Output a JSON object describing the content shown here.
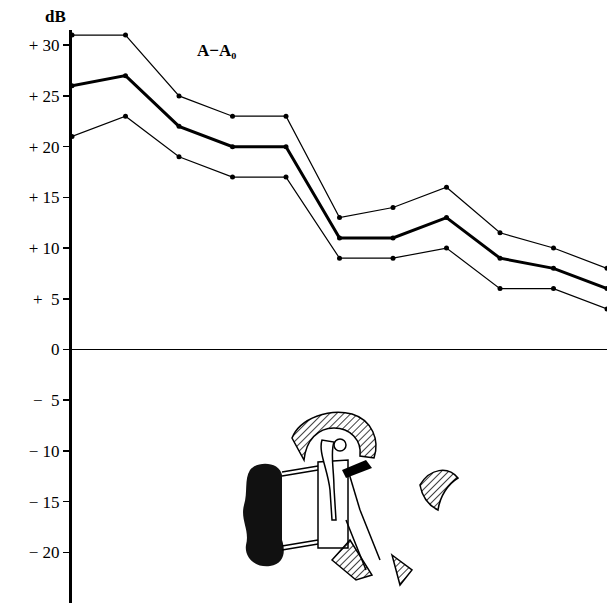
{
  "chart_data": {
    "type": "line",
    "ylabel": "dB",
    "annotations": [
      {
        "text": "A−A₀"
      }
    ],
    "x": [
      0,
      1,
      2,
      3,
      4,
      5,
      6,
      7,
      8,
      9,
      10
    ],
    "xlim": [
      0,
      10
    ],
    "ylim": [
      -25,
      31.5
    ],
    "yticks": [
      {
        "value": 30,
        "label": "+ 30"
      },
      {
        "value": 25,
        "label": "+ 25"
      },
      {
        "value": 20,
        "label": "+ 20"
      },
      {
        "value": 15,
        "label": "+ 15"
      },
      {
        "value": 10,
        "label": "+ 10"
      },
      {
        "value": 5,
        "label": "+  5"
      },
      0,
      {
        "value": -5,
        "label": "−  5"
      },
      {
        "value": -10,
        "label": "− 10"
      },
      {
        "value": -15,
        "label": "− 15"
      },
      {
        "value": -20,
        "label": "− 20"
      }
    ],
    "tick_labels": "y",
    "grid": false,
    "series": [
      {
        "color": "#000000",
        "line_style": "thin",
        "marker": "circle",
        "values": [
          31,
          31,
          25,
          23,
          23,
          13,
          14,
          16,
          11.5,
          10,
          8
        ]
      },
      {
        "color": "#000000",
        "line_style": "thick",
        "marker": "circle",
        "values": [
          26,
          27,
          22,
          20,
          20,
          11,
          11,
          13,
          9,
          8,
          6
        ]
      },
      {
        "color": "#000000",
        "line_style": "thin",
        "marker": "circle",
        "values": [
          21,
          23,
          19,
          17,
          17,
          9,
          9,
          10,
          6,
          6,
          4
        ]
      }
    ]
  }
}
